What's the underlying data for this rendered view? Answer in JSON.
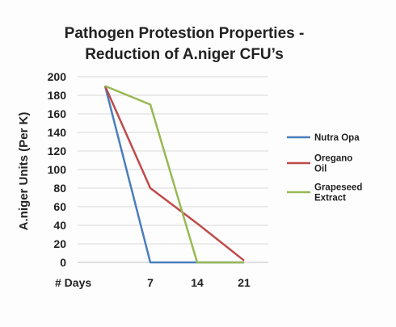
{
  "chart_data": {
    "type": "line",
    "title_lines": [
      "Pathogen Protestion  Properties -",
      "Reduction of A.niger CFU’s"
    ],
    "ylabel": "A.niger Units (Per K)",
    "xlabel": "",
    "x_first_label": "# Days",
    "x": [
      0,
      7,
      14,
      21
    ],
    "x_tick_labels": [
      "7",
      "14",
      "21"
    ],
    "ylim": [
      0,
      200
    ],
    "y_ticks": [
      0,
      20,
      40,
      60,
      80,
      100,
      120,
      140,
      160,
      180,
      200
    ],
    "grid": true,
    "legend_position": "right",
    "series": [
      {
        "name": "Nutra Opa",
        "name_lines": [
          "Nutra Opa"
        ],
        "color": "#4a7ebb",
        "values": [
          190,
          0,
          0,
          0
        ]
      },
      {
        "name": "Oregano Oil",
        "name_lines": [
          "Oregano",
          "Oil"
        ],
        "color": "#be4b48",
        "values": [
          190,
          80,
          42,
          2
        ]
      },
      {
        "name": "Grapeseed Extract",
        "name_lines": [
          "Grapeseed",
          "Extract"
        ],
        "color": "#98b954",
        "values": [
          190,
          170,
          0,
          0
        ]
      }
    ]
  }
}
